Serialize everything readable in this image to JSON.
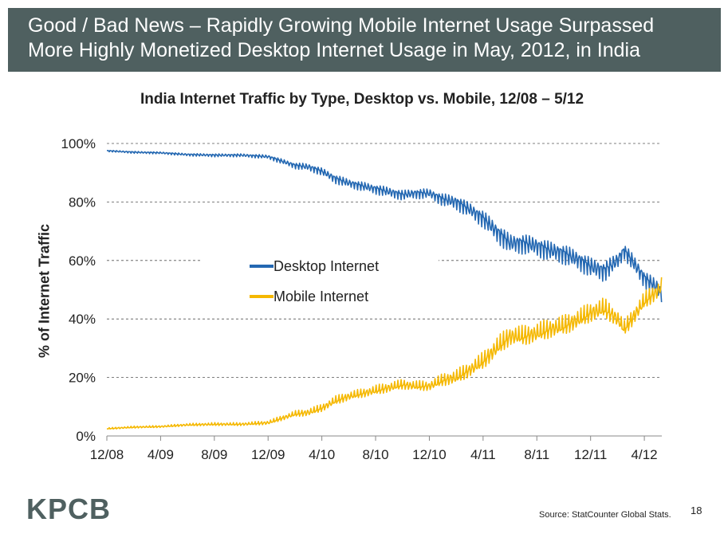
{
  "header": {
    "line1": "Good / Bad News – Rapidly Growing Mobile Internet Usage Surpassed",
    "line2": "More Highly Monetized Desktop Internet Usage in May, 2012, in India"
  },
  "footer": {
    "logo": "KPCB",
    "source": "Source: StatCounter Global Stats.",
    "page_number": "18"
  },
  "colors": {
    "header_bg": "#4f6060",
    "desktop": "#2468b2",
    "mobile": "#f5b800",
    "grid": "#555555"
  },
  "chart_data": {
    "type": "line",
    "title": "India Internet Traffic by Type, Desktop vs. Mobile, 12/08 – 5/12",
    "xlabel": "",
    "ylabel": "% of Internet Traffic",
    "ylim": [
      0,
      100
    ],
    "y_ticks": [
      "0%",
      "20%",
      "40%",
      "60%",
      "80%",
      "100%"
    ],
    "y_tick_values": [
      0,
      20,
      40,
      60,
      80,
      100
    ],
    "x_ticks": [
      "12/08",
      "4/09",
      "8/09",
      "12/09",
      "4/10",
      "8/10",
      "12/10",
      "4/11",
      "8/11",
      "12/11",
      "4/12"
    ],
    "x_tick_values": [
      0,
      4,
      8,
      12,
      16,
      20,
      24,
      28,
      32,
      36,
      40
    ],
    "xlim": [
      0,
      41.3
    ],
    "legend_position": "center",
    "x_unit": "months since 12/08",
    "series": [
      {
        "name": "Desktop Internet",
        "x": [
          0,
          2,
          4,
          6,
          8,
          10,
          12,
          13,
          14,
          15,
          16,
          17,
          18,
          19,
          20,
          21,
          22,
          23,
          24,
          25,
          26,
          27,
          28,
          29,
          30,
          31,
          32,
          33,
          34,
          35,
          36,
          37,
          38,
          38.5,
          39,
          40,
          41,
          41.3
        ],
        "values": [
          97.5,
          97,
          96.8,
          96.2,
          96,
          96,
          95.5,
          94,
          92.5,
          92,
          90.5,
          88,
          86.5,
          85.5,
          84.5,
          83.5,
          82.5,
          83,
          83,
          81,
          80,
          77.5,
          74.5,
          70,
          66,
          66,
          65,
          63.5,
          62.5,
          60.5,
          58,
          56.5,
          60,
          63.5,
          60.5,
          54,
          50.5,
          48.5
        ],
        "oscillation": [
          0.3,
          0.4,
          0.4,
          0.5,
          0.6,
          0.6,
          0.8,
          1,
          1.2,
          1.5,
          1.5,
          1.8,
          1.8,
          1.8,
          2,
          2,
          2,
          2,
          2,
          2.5,
          3,
          3,
          3.5,
          4,
          4,
          4,
          4,
          4,
          4,
          4,
          4,
          4,
          3.5,
          3,
          3.5,
          3.5,
          3.5,
          3.5
        ]
      },
      {
        "name": "Mobile Internet",
        "x": [
          0,
          2,
          4,
          6,
          8,
          10,
          12,
          13,
          14,
          15,
          16,
          17,
          18,
          19,
          20,
          21,
          22,
          23,
          24,
          25,
          26,
          27,
          28,
          29,
          30,
          31,
          32,
          33,
          34,
          35,
          36,
          37,
          38,
          38.5,
          39,
          40,
          41,
          41.3
        ],
        "values": [
          2.5,
          3,
          3.2,
          3.8,
          4,
          4,
          4.5,
          6,
          7.5,
          8,
          9.5,
          12,
          13.5,
          14.5,
          15.5,
          16.5,
          17.5,
          17,
          17,
          19,
          20,
          22.5,
          25.5,
          30,
          34,
          34,
          35,
          36.5,
          37.5,
          39.5,
          42,
          43.5,
          40,
          36.5,
          39.5,
          46,
          49.5,
          51.5
        ],
        "oscillation": [
          0.3,
          0.4,
          0.4,
          0.5,
          0.6,
          0.6,
          0.8,
          1,
          1.2,
          1.5,
          1.5,
          1.8,
          1.8,
          1.8,
          2,
          2,
          2,
          2,
          2,
          2.5,
          3,
          3,
          3.5,
          4,
          4,
          4,
          4,
          4,
          4,
          4,
          4,
          4,
          3.5,
          3,
          3.5,
          3.5,
          3.5,
          3.5
        ]
      }
    ]
  }
}
